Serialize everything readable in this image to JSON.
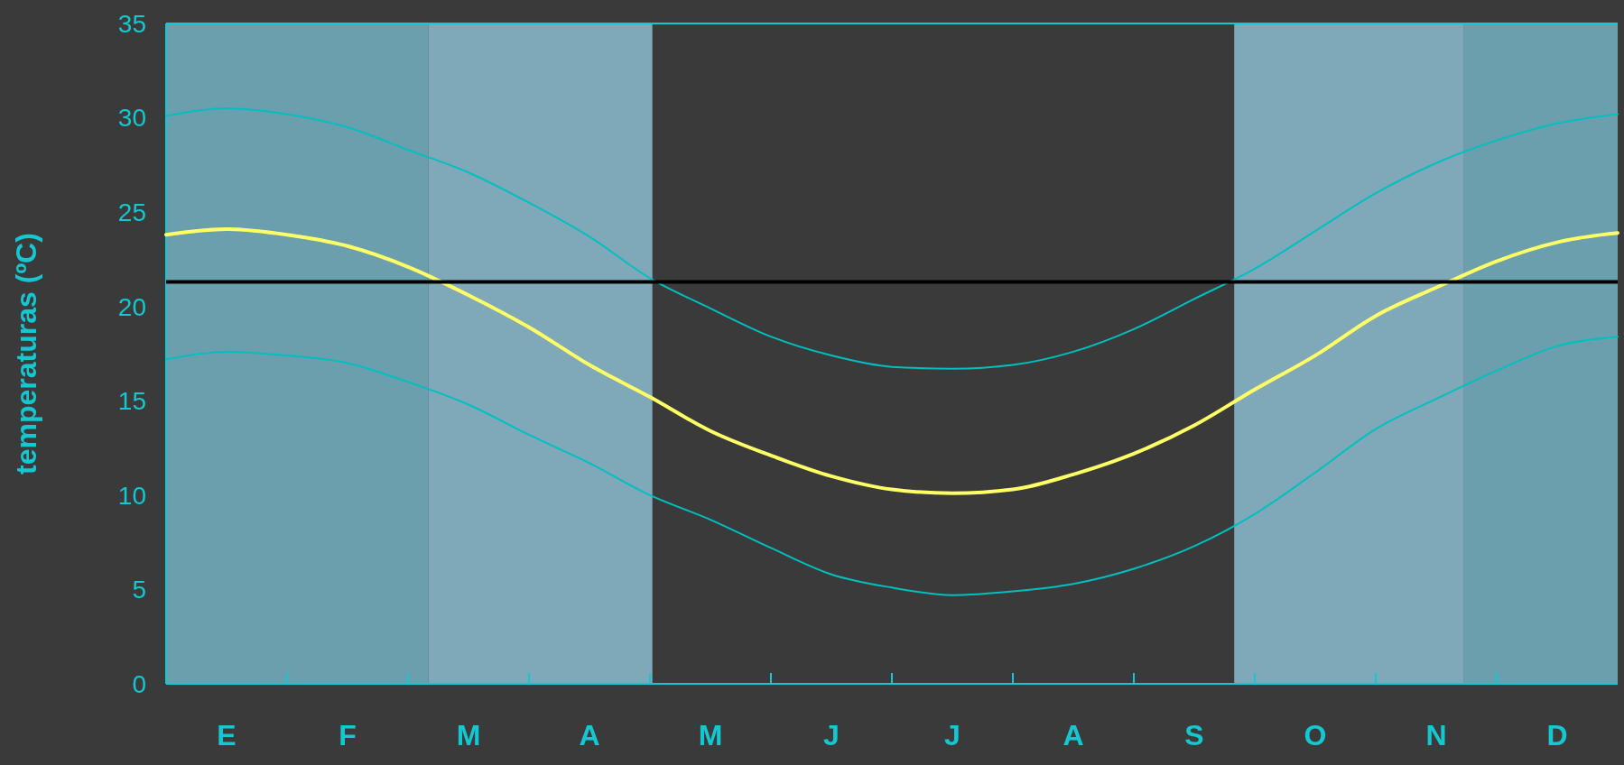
{
  "chart_data": {
    "type": "line",
    "ylabel": "temperaturas (ºC)",
    "ylim": [
      0,
      35
    ],
    "yticks": [
      0,
      5,
      10,
      15,
      20,
      25,
      30,
      35
    ],
    "categories": [
      null,
      "E",
      null,
      "F",
      null,
      "M",
      null,
      "A",
      null,
      "M",
      null,
      "J",
      null,
      "J",
      null,
      "A",
      null,
      "S",
      null,
      "O",
      null,
      "N",
      null,
      "D",
      null
    ],
    "grid": false,
    "ref_lines": [
      {
        "axis": "y",
        "value": 21.3,
        "color": "#000000"
      }
    ],
    "series": [
      {
        "color": "#00c0c0",
        "values": [
          30.1,
          30.5,
          30.2,
          29.5,
          28.3,
          27.1,
          25.5,
          23.7,
          21.5,
          19.9,
          18.4,
          17.4,
          16.8,
          16.7,
          16.9,
          17.6,
          18.8,
          20.4,
          22.0,
          24.0,
          26.0,
          27.6,
          28.8,
          29.7,
          30.2
        ]
      },
      {
        "color": "#ffff66",
        "values": [
          23.8,
          24.1,
          23.8,
          23.2,
          22.1,
          20.6,
          18.9,
          16.9,
          15.2,
          13.4,
          12.1,
          11.0,
          10.3,
          10.1,
          10.3,
          11.1,
          12.2,
          13.7,
          15.6,
          17.4,
          19.5,
          21.0,
          22.4,
          23.4,
          23.9
        ]
      },
      {
        "color": "#00c0c0",
        "values": [
          17.2,
          17.6,
          17.4,
          17.0,
          16.0,
          14.8,
          13.2,
          11.7,
          10.0,
          8.7,
          7.2,
          5.8,
          5.1,
          4.7,
          4.9,
          5.3,
          6.1,
          7.3,
          9.0,
          11.2,
          13.5,
          15.1,
          16.6,
          17.9,
          18.4
        ]
      }
    ]
  }
}
